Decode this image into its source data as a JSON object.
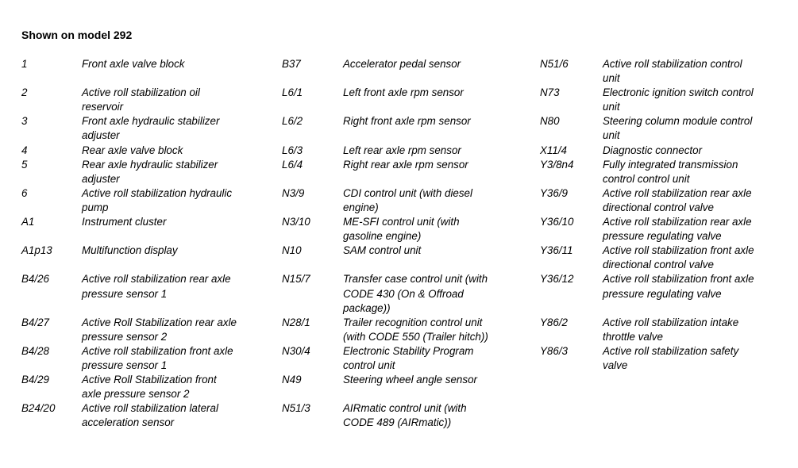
{
  "title": "Shown on model 292",
  "legend": {
    "rows": [
      {
        "code1": "1",
        "desc1": "Front axle valve block",
        "code2": "B37",
        "desc2": "Accelerator pedal sensor",
        "code3": "N51/6",
        "desc3": "Active roll stabilization control\nunit"
      },
      {
        "code1": "2",
        "desc1": "Active roll stabilization oil\nreservoir",
        "code2": "L6/1",
        "desc2": "Left front axle rpm sensor",
        "code3": "N73",
        "desc3": "Electronic ignition switch control\nunit"
      },
      {
        "code1": "3",
        "desc1": "Front axle hydraulic stabilizer\nadjuster",
        "code2": "L6/2",
        "desc2": "Right front axle rpm sensor",
        "code3": "N80",
        "desc3": "Steering column module control\nunit"
      },
      {
        "code1": "4",
        "desc1": "Rear axle valve block",
        "code2": "L6/3",
        "desc2": "Left rear axle rpm sensor",
        "code3": "X11/4",
        "desc3": "Diagnostic connector"
      },
      {
        "code1": "5",
        "desc1": "Rear axle hydraulic stabilizer\nadjuster",
        "code2": "L6/4",
        "desc2": "Right rear axle rpm sensor",
        "code3": "Y3/8n4",
        "desc3": "Fully integrated transmission\ncontrol control unit"
      },
      {
        "code1": "6",
        "desc1": "Active roll stabilization hydraulic\npump",
        "code2": "N3/9",
        "desc2": "CDI control unit (with diesel\nengine)",
        "code3": "Y36/9",
        "desc3": "Active roll stabilization rear axle\ndirectional control valve"
      },
      {
        "code1": "A1",
        "desc1": "Instrument cluster",
        "code2": "N3/10",
        "desc2": "ME-SFI control unit (with\ngasoline engine)",
        "code3": "Y36/10",
        "desc3": "Active roll stabilization rear axle\npressure regulating valve"
      },
      {
        "code1": "A1p13",
        "desc1": "Multifunction display",
        "code2": "N10",
        "desc2": "SAM control unit",
        "code3": "Y36/11",
        "desc3": "Active roll stabilization front axle\ndirectional control valve"
      },
      {
        "code1": "B4/26",
        "desc1": "Active roll stabilization rear axle\npressure sensor 1",
        "code2": "N15/7",
        "desc2": "Transfer case control unit (with\nCODE 430 (On & Offroad\npackage))",
        "code3": "Y36/12",
        "desc3": "Active roll stabilization front axle\npressure regulating valve"
      },
      {
        "code1": "B4/27",
        "desc1": "Active Roll Stabilization rear axle\npressure sensor 2",
        "code2": "N28/1",
        "desc2": "Trailer recognition control unit\n(with CODE 550 (Trailer hitch))",
        "code3": "Y86/2",
        "desc3": "Active roll stabilization intake\nthrottle valve"
      },
      {
        "code1": "B4/28",
        "desc1": "Active roll stabilization front axle\npressure sensor 1",
        "code2": "N30/4",
        "desc2": "Electronic Stability Program\ncontrol unit",
        "code3": "Y86/3",
        "desc3": "Active roll stabilization safety\nvalve"
      },
      {
        "code1": "B4/29",
        "desc1": "Active Roll Stabilization front\naxle pressure sensor 2",
        "code2": "N49",
        "desc2": "Steering wheel angle sensor",
        "code3": "",
        "desc3": ""
      },
      {
        "code1": "B24/20",
        "desc1": "Active roll stabilization lateral\nacceleration sensor",
        "code2": "N51/3",
        "desc2": "AIRmatic control unit (with\nCODE 489 (AIRmatic))",
        "code3": "",
        "desc3": ""
      }
    ]
  }
}
